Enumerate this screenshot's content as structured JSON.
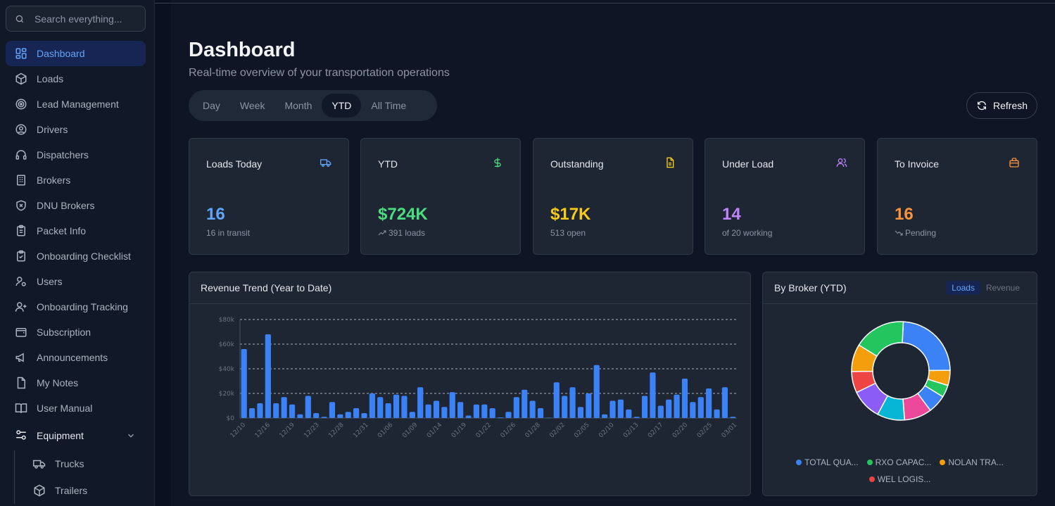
{
  "search": {
    "placeholder": "Search everything..."
  },
  "sidebar": {
    "items": [
      {
        "label": "Dashboard",
        "icon": "layout-grid-icon",
        "active": true
      },
      {
        "label": "Loads",
        "icon": "package-icon"
      },
      {
        "label": "Lead Management",
        "icon": "target-icon"
      },
      {
        "label": "Drivers",
        "icon": "user-circle-icon"
      },
      {
        "label": "Dispatchers",
        "icon": "headphones-icon"
      },
      {
        "label": "Brokers",
        "icon": "building-icon"
      },
      {
        "label": "DNU Brokers",
        "icon": "shield-x-icon"
      },
      {
        "label": "Packet Info",
        "icon": "clipboard-icon"
      },
      {
        "label": "Onboarding Checklist",
        "icon": "clipboard-check-icon"
      },
      {
        "label": "Users",
        "icon": "user-cog-icon"
      },
      {
        "label": "Onboarding Tracking",
        "icon": "user-plus-icon"
      },
      {
        "label": "Subscription",
        "icon": "wallet-icon"
      },
      {
        "label": "Announcements",
        "icon": "megaphone-icon"
      },
      {
        "label": "My Notes",
        "icon": "file-icon"
      },
      {
        "label": "User Manual",
        "icon": "book-open-icon"
      }
    ],
    "group": {
      "label": "Equipment",
      "icon": "sliders-icon"
    },
    "subitems": [
      {
        "label": "Trucks",
        "icon": "truck-icon"
      },
      {
        "label": "Trailers",
        "icon": "box-icon"
      }
    ]
  },
  "header": {
    "title": "Dashboard",
    "subtitle": "Real-time overview of your transportation operations",
    "ranges": [
      "Day",
      "Week",
      "Month",
      "YTD",
      "All Time"
    ],
    "active_range": "YTD",
    "refresh_label": "Refresh"
  },
  "cards": [
    {
      "title": "Loads Today",
      "value": "16",
      "sub": "16 in transit",
      "color": "#60a5fa",
      "icon": "truck-icon"
    },
    {
      "title": "YTD",
      "value": "$724K",
      "sub": "391 loads",
      "color": "#4ade80",
      "icon": "dollar-icon"
    },
    {
      "title": "Outstanding",
      "value": "$17K",
      "sub": "513 open",
      "color": "#facc15",
      "icon": "file-text-icon"
    },
    {
      "title": "Under Load",
      "value": "14",
      "sub": "of 20 working",
      "color": "#c084fc",
      "icon": "users-icon"
    },
    {
      "title": "To Invoice",
      "value": "16",
      "sub": "Pending",
      "color": "#fb923c",
      "icon": "briefcase-icon"
    }
  ],
  "revenue_panel": {
    "title": "Revenue Trend (Year to Date)"
  },
  "broker_panel": {
    "title": "By Broker (YTD)",
    "toggle": [
      "Loads",
      "Revenue"
    ],
    "legend": [
      {
        "label": "TOTAL QUA...",
        "color": "#3b82f6"
      },
      {
        "label": "RXO CAPAC...",
        "color": "#22c55e"
      },
      {
        "label": "NOLAN TRA...",
        "color": "#f59e0b"
      },
      {
        "label": "WEL LOGIS...",
        "color": "#ef4444"
      }
    ]
  },
  "chart_data": [
    {
      "type": "bar",
      "title": "Revenue Trend (Year to Date)",
      "ylabel": "",
      "ylim": [
        0,
        80000
      ],
      "yticks": [
        "$0",
        "$20k",
        "$40k",
        "$60k",
        "$80k"
      ],
      "xticks": [
        "12/10",
        "12/16",
        "12/19",
        "12/23",
        "12/28",
        "12/31",
        "01/06",
        "01/09",
        "01/14",
        "01/19",
        "01/22",
        "01/26",
        "01/28",
        "02/02",
        "02/05",
        "02/10",
        "02/13",
        "02/17",
        "02/20",
        "02/25",
        "03/01"
      ],
      "color": "#3b82f6",
      "values": [
        56000,
        8000,
        12000,
        68000,
        12000,
        17000,
        11000,
        3000,
        18000,
        4000,
        1000,
        13000,
        3000,
        5000,
        8000,
        4000,
        20000,
        17000,
        12000,
        19000,
        18000,
        5000,
        25000,
        11000,
        14000,
        9000,
        21000,
        13000,
        2000,
        11000,
        11000,
        8000,
        500,
        5000,
        17000,
        23000,
        14000,
        8000,
        0,
        29000,
        18000,
        25000,
        9000,
        20000,
        43000,
        3000,
        14000,
        15000,
        7000,
        1000,
        18000,
        37000,
        10000,
        15000,
        19000,
        32000,
        13000,
        17000,
        24000,
        7000,
        25000,
        1000
      ]
    },
    {
      "type": "pie",
      "title": "By Broker (YTD)",
      "slices": [
        {
          "color": "#3b82f6",
          "value": 24
        },
        {
          "color": "#f59e0b",
          "value": 5
        },
        {
          "color": "#22c55e",
          "value": 4
        },
        {
          "color": "#3b82f6",
          "value": 6
        },
        {
          "color": "#ec4899",
          "value": 9
        },
        {
          "color": "#06b6d4",
          "value": 9
        },
        {
          "color": "#8b5cf6",
          "value": 10
        },
        {
          "color": "#ef4444",
          "value": 7
        },
        {
          "color": "#f59e0b",
          "value": 9
        },
        {
          "color": "#22c55e",
          "value": 17
        }
      ]
    }
  ]
}
